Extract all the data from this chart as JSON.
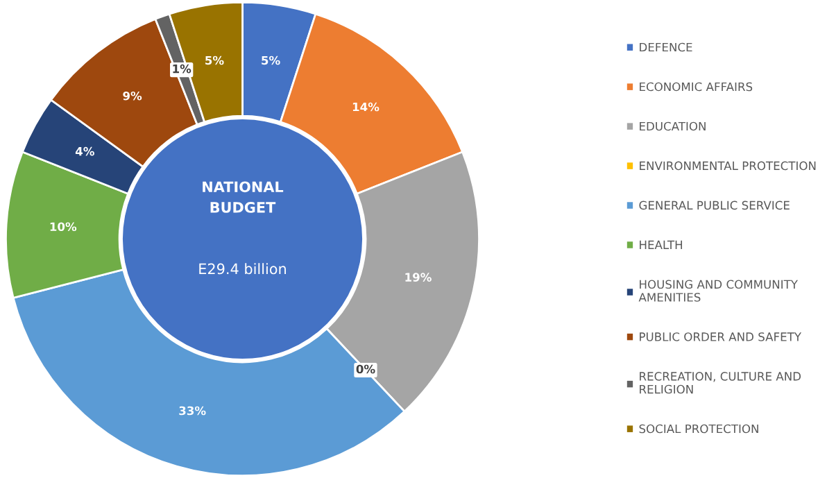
{
  "chart_data": {
    "type": "donut",
    "title": "NATIONAL BUDGET",
    "subtitle": "E29.4 billion",
    "categories": [
      "DEFENCE",
      "ECONOMIC AFFAIRS",
      "EDUCATION",
      "ENVIRONMENTAL PROTECTION",
      "GENERAL PUBLIC SERVICE",
      "HEALTH",
      "HOUSING AND COMMUNITY AMENITIES",
      "PUBLIC ORDER AND SAFETY",
      "RECREATION, CULTURE AND RELIGION",
      "SOCIAL PROTECTION"
    ],
    "values": [
      5,
      14,
      19,
      0,
      33,
      10,
      4,
      9,
      1,
      5
    ],
    "colors": [
      "#4472c4",
      "#ed7d31",
      "#a5a5a5",
      "#ffc000",
      "#5b9bd5",
      "#70ad47",
      "#264478",
      "#9e480e",
      "#636363",
      "#997300"
    ],
    "value_labels": [
      "5%",
      "14%",
      "19%",
      "0%",
      "33%",
      "10%",
      "4%",
      "9%",
      "1%",
      "5%"
    ],
    "legend": "right"
  }
}
